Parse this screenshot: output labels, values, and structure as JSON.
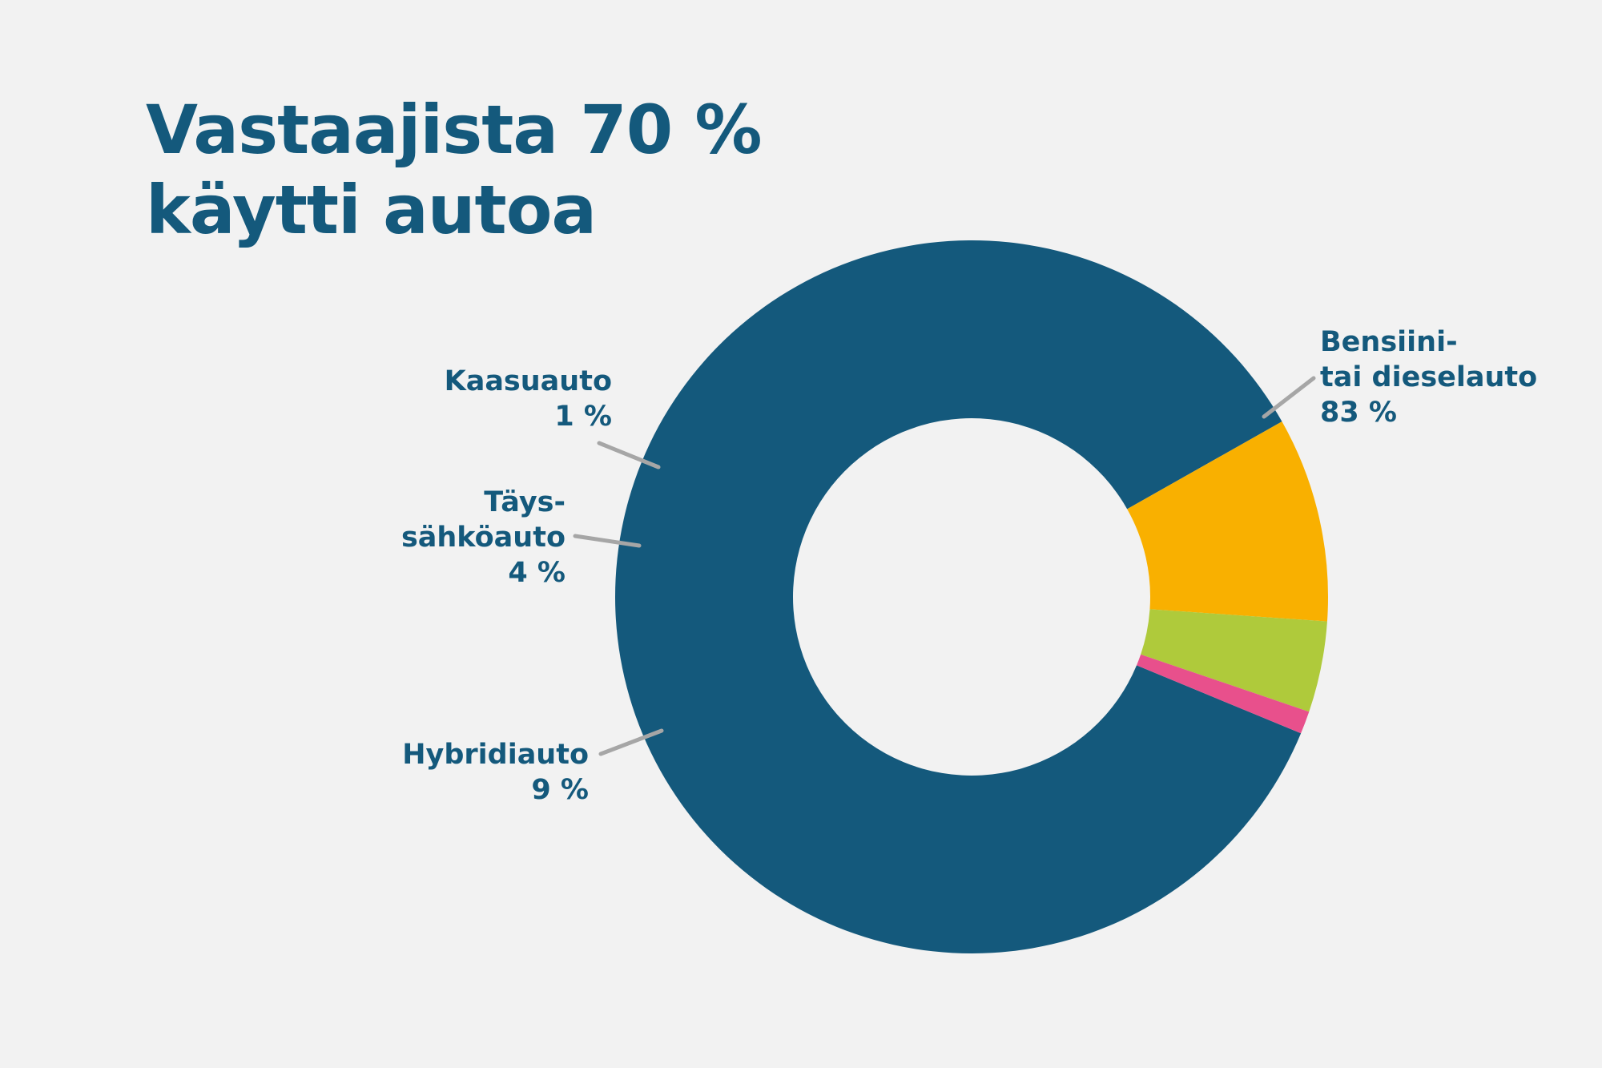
{
  "title_lines": [
    "Vastaajista 70 %",
    "käytti autoa"
  ],
  "colors": {
    "background": "#f2f2f2",
    "text": "#14597c",
    "leader_line": "#a6a6a6"
  },
  "chart_data": {
    "type": "pie",
    "variant": "donut",
    "title": "Vastaajista 70 % käytti autoa",
    "unit": "%",
    "series": [
      {
        "name": "Bensiini- tai dieselauto",
        "label_lines": [
          "Bensiini-",
          "tai dieselauto"
        ],
        "value": 83,
        "value_label": "83 %",
        "color": "#14597c"
      },
      {
        "name": "Hybridiauto",
        "label_lines": [
          "Hybridiauto"
        ],
        "value": 9,
        "value_label": "9 %",
        "color": "#f9b000"
      },
      {
        "name": "Täyssähköauto",
        "label_lines": [
          "Täys-",
          "sähköauto"
        ],
        "value": 4,
        "value_label": "4 %",
        "color": "#afca3b"
      },
      {
        "name": "Kaasuauto",
        "label_lines": [
          "Kaasuauto"
        ],
        "value": 1,
        "value_label": "1 %",
        "color": "#e8508c"
      }
    ]
  }
}
